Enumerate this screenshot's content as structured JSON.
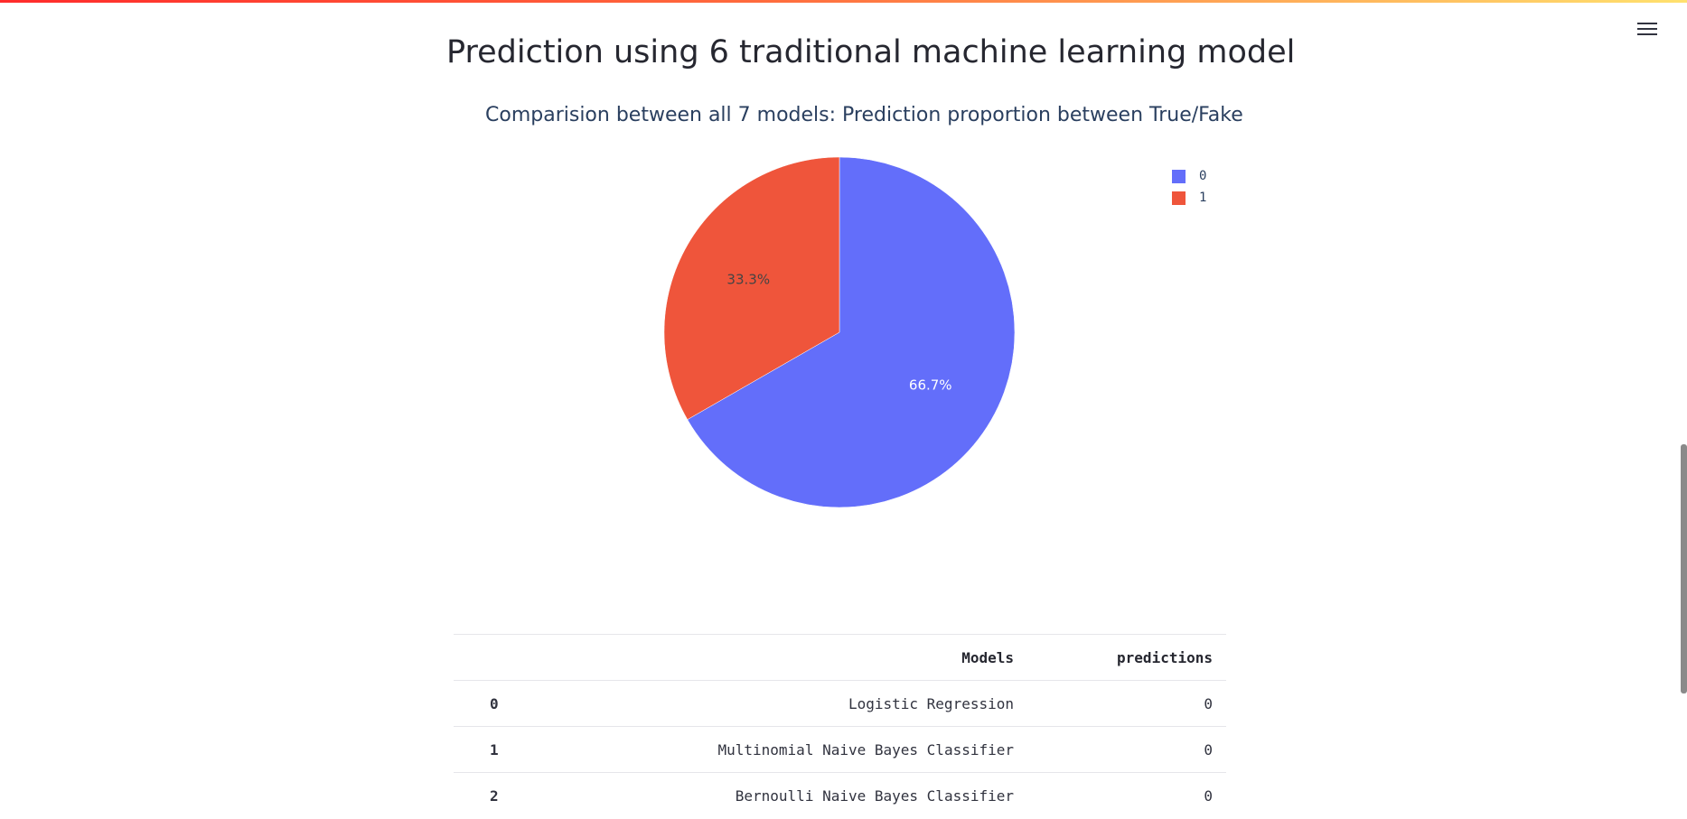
{
  "page": {
    "title": "Prediction using 6 traditional machine learning model",
    "menu_icon": "hamburger-menu-icon"
  },
  "colors": {
    "slice_0": "#636efa",
    "slice_1": "#ef553b",
    "title_text": "#2a3f5f"
  },
  "chart_data": {
    "type": "pie",
    "title": "Comparision between all 7 models: Prediction proportion between True/Fake",
    "labels": [
      "0",
      "1"
    ],
    "values": [
      66.7,
      33.3
    ],
    "text_labels": [
      "66.7%",
      "33.3%"
    ],
    "legend": {
      "placement": "top-right",
      "entries": [
        "0",
        "1"
      ]
    }
  },
  "table": {
    "columns": [
      "",
      "Models",
      "predictions"
    ],
    "rows": [
      {
        "index": "0",
        "model": "Logistic Regression",
        "prediction": "0"
      },
      {
        "index": "1",
        "model": "Multinomial Naive Bayes Classifier",
        "prediction": "0"
      },
      {
        "index": "2",
        "model": "Bernoulli Naive Bayes Classifier",
        "prediction": "0"
      }
    ]
  }
}
